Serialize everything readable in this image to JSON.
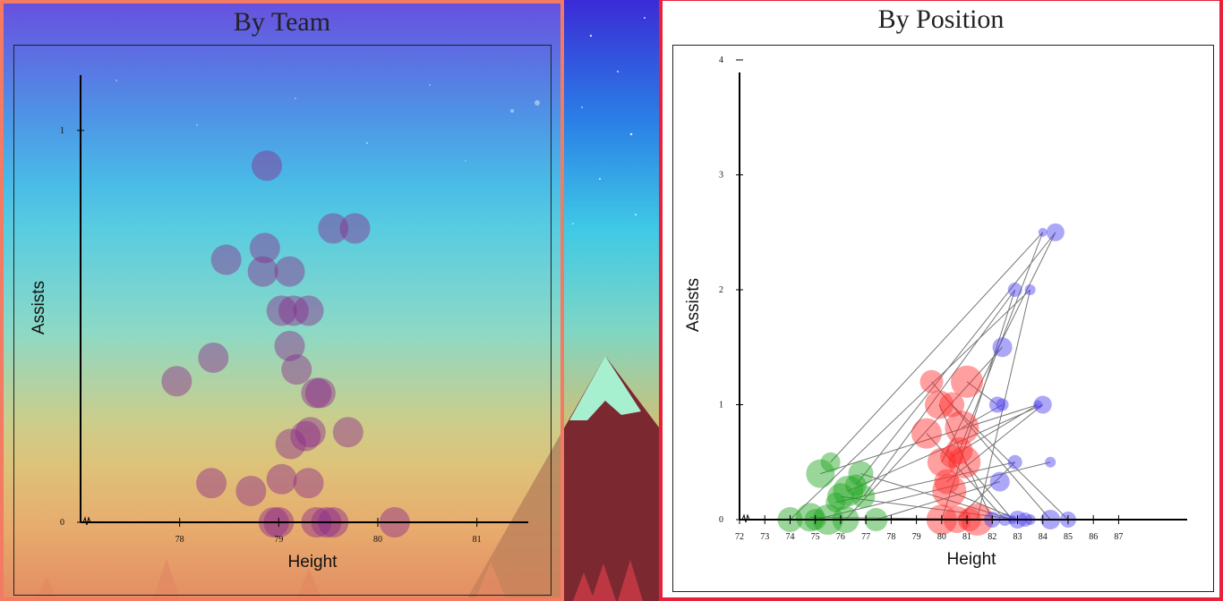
{
  "chart_data": [
    {
      "type": "scatter",
      "title": "By Team",
      "xlabel": "Height",
      "ylabel": "Assists",
      "xlim": [
        77,
        81.5
      ],
      "ylim": [
        0,
        1.1
      ],
      "x_ticks": [
        "78",
        "79",
        "80",
        "81"
      ],
      "y_ticks": [
        "0",
        "1"
      ],
      "grid": false,
      "color": "#8b2a8b",
      "points": [
        {
          "x": 78.88,
          "y": 0.91
        },
        {
          "x": 79.55,
          "y": 0.75
        },
        {
          "x": 79.77,
          "y": 0.75
        },
        {
          "x": 78.47,
          "y": 0.67
        },
        {
          "x": 78.86,
          "y": 0.7
        },
        {
          "x": 78.84,
          "y": 0.64
        },
        {
          "x": 79.11,
          "y": 0.64
        },
        {
          "x": 79.03,
          "y": 0.54
        },
        {
          "x": 79.15,
          "y": 0.54
        },
        {
          "x": 79.3,
          "y": 0.54
        },
        {
          "x": 78.34,
          "y": 0.42
        },
        {
          "x": 77.97,
          "y": 0.36
        },
        {
          "x": 79.11,
          "y": 0.45
        },
        {
          "x": 79.18,
          "y": 0.39
        },
        {
          "x": 79.38,
          "y": 0.33
        },
        {
          "x": 79.42,
          "y": 0.33
        },
        {
          "x": 79.32,
          "y": 0.23
        },
        {
          "x": 79.27,
          "y": 0.22
        },
        {
          "x": 79.12,
          "y": 0.2
        },
        {
          "x": 79.7,
          "y": 0.23
        },
        {
          "x": 78.32,
          "y": 0.1
        },
        {
          "x": 78.72,
          "y": 0.08
        },
        {
          "x": 79.03,
          "y": 0.11
        },
        {
          "x": 79.3,
          "y": 0.1
        },
        {
          "x": 78.95,
          "y": 0.0
        },
        {
          "x": 79.0,
          "y": 0.0
        },
        {
          "x": 79.38,
          "y": 0.0
        },
        {
          "x": 79.48,
          "y": 0.0
        },
        {
          "x": 79.55,
          "y": 0.0
        },
        {
          "x": 80.17,
          "y": 0.0
        }
      ]
    },
    {
      "type": "scatter",
      "title": "By Position",
      "xlabel": "Height",
      "ylabel": "Assists",
      "xlim": [
        72,
        89.5
      ],
      "ylim": [
        0,
        4
      ],
      "x_ticks": [
        "72",
        "73",
        "74",
        "75",
        "76",
        "77",
        "78",
        "79",
        "80",
        "81",
        "82",
        "83",
        "84",
        "85",
        "86",
        "87"
      ],
      "y_ticks": [
        "0",
        "1",
        "2",
        "3",
        "4"
      ],
      "grid": false,
      "connector_color": "#777777",
      "series": [
        {
          "color": "#1fa31f",
          "points": [
            {
              "x": 75.6,
              "y": 0.5
            },
            {
              "x": 75.2,
              "y": 0.4
            },
            {
              "x": 76.8,
              "y": 0.4
            },
            {
              "x": 76.6,
              "y": 0.3
            },
            {
              "x": 76.3,
              "y": 0.25
            },
            {
              "x": 76.0,
              "y": 0.2
            },
            {
              "x": 76.9,
              "y": 0.2
            },
            {
              "x": 75.8,
              "y": 0.15
            },
            {
              "x": 74.8,
              "y": 0.02
            },
            {
              "x": 74.0,
              "y": 0.0
            },
            {
              "x": 75.0,
              "y": 0.0
            },
            {
              "x": 75.5,
              "y": 0.0
            },
            {
              "x": 76.2,
              "y": 0.0
            },
            {
              "x": 77.4,
              "y": 0.0
            }
          ]
        },
        {
          "color": "#ff2a2a",
          "points": [
            {
              "x": 79.6,
              "y": 1.2
            },
            {
              "x": 81.0,
              "y": 1.2
            },
            {
              "x": 79.9,
              "y": 1.0
            },
            {
              "x": 80.4,
              "y": 1.0
            },
            {
              "x": 80.8,
              "y": 0.8
            },
            {
              "x": 79.4,
              "y": 0.75
            },
            {
              "x": 80.7,
              "y": 0.6
            },
            {
              "x": 80.4,
              "y": 0.55
            },
            {
              "x": 80.9,
              "y": 0.5
            },
            {
              "x": 80.0,
              "y": 0.5
            },
            {
              "x": 80.2,
              "y": 0.33
            },
            {
              "x": 80.3,
              "y": 0.25
            },
            {
              "x": 80.0,
              "y": 0.0
            },
            {
              "x": 80.6,
              "y": 0.0
            },
            {
              "x": 81.1,
              "y": 0.0
            },
            {
              "x": 81.4,
              "y": 0.0
            }
          ]
        },
        {
          "color": "#4a3cf0",
          "points": [
            {
              "x": 84.0,
              "y": 2.5
            },
            {
              "x": 84.5,
              "y": 2.5
            },
            {
              "x": 82.9,
              "y": 2.0
            },
            {
              "x": 83.5,
              "y": 2.0
            },
            {
              "x": 82.4,
              "y": 1.5
            },
            {
              "x": 82.2,
              "y": 1.0
            },
            {
              "x": 82.4,
              "y": 1.0
            },
            {
              "x": 83.8,
              "y": 1.0
            },
            {
              "x": 84.0,
              "y": 1.0
            },
            {
              "x": 82.9,
              "y": 0.5
            },
            {
              "x": 84.3,
              "y": 0.5
            },
            {
              "x": 82.3,
              "y": 0.33
            },
            {
              "x": 82.0,
              "y": 0.0
            },
            {
              "x": 82.5,
              "y": 0.0
            },
            {
              "x": 82.8,
              "y": 0.0
            },
            {
              "x": 83.0,
              "y": 0.0
            },
            {
              "x": 83.3,
              "y": 0.0
            },
            {
              "x": 83.5,
              "y": 0.0
            },
            {
              "x": 84.3,
              "y": 0.0
            },
            {
              "x": 85.0,
              "y": 0.0
            }
          ]
        }
      ]
    }
  ]
}
